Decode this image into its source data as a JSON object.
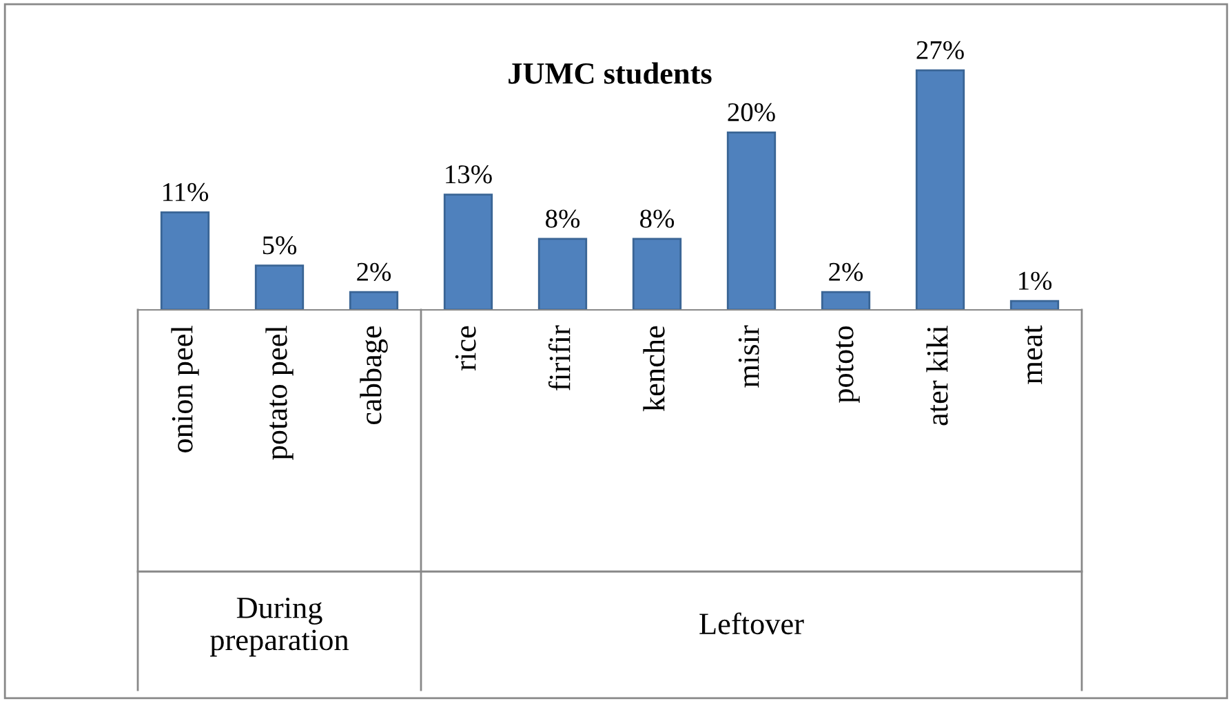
{
  "chart_data": {
    "type": "bar",
    "title": "JUMC students",
    "categories": [
      "onion peel",
      "potato peel",
      "cabbage",
      "rice",
      "firifir",
      "kenche",
      "misir",
      "pototo",
      "ater kiki",
      "meat"
    ],
    "values": [
      11,
      5,
      2,
      13,
      8,
      8,
      20,
      2,
      27,
      1
    ],
    "value_labels": [
      "11%",
      "5%",
      "2%",
      "13%",
      "8%",
      "8%",
      "20%",
      "2%",
      "27%",
      "1%"
    ],
    "color": "#4f81bd",
    "annotations": [
      "During\npreparation",
      "Leftover"
    ]
  }
}
